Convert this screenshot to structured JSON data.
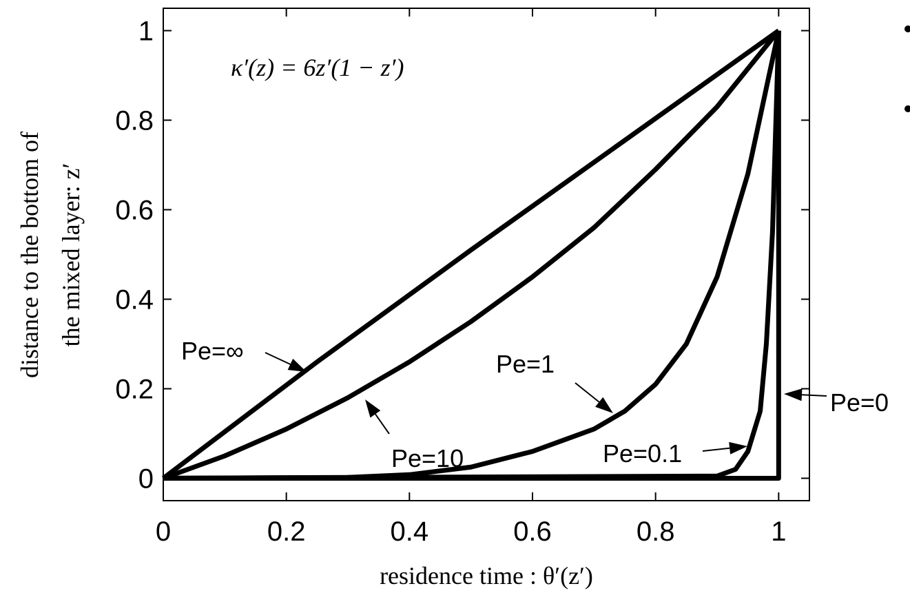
{
  "chart_data": {
    "type": "line",
    "equation": "κ′(z) = 6z′(1 − z′)",
    "x_label": "residence time :  θ′(z′)",
    "y_label": [
      "distance to the bottom of",
      "the mixed layer: z′"
    ],
    "xlim": [
      0,
      1.05
    ],
    "ylim": [
      -0.05,
      1.05
    ],
    "xticks": [
      0,
      0.2,
      0.4,
      0.6,
      0.8,
      1
    ],
    "yticks": [
      0,
      0.2,
      0.4,
      0.6,
      0.8,
      1
    ],
    "color": "#000000",
    "series": [
      {
        "name": "Pe=∞",
        "x": [
          0,
          0.25,
          0.5,
          0.75,
          1
        ],
        "values": [
          0,
          0.26,
          0.51,
          0.755,
          1
        ]
      },
      {
        "name": "Pe=10",
        "x": [
          0,
          0.1,
          0.2,
          0.3,
          0.4,
          0.5,
          0.6,
          0.7,
          0.8,
          0.9,
          1
        ],
        "values": [
          0,
          0.05,
          0.11,
          0.18,
          0.26,
          0.35,
          0.45,
          0.56,
          0.69,
          0.83,
          1
        ]
      },
      {
        "name": "Pe=1",
        "x": [
          0,
          0.3,
          0.4,
          0.5,
          0.6,
          0.7,
          0.75,
          0.8,
          0.85,
          0.9,
          0.95,
          1
        ],
        "values": [
          0,
          0.002,
          0.008,
          0.025,
          0.06,
          0.11,
          0.15,
          0.21,
          0.3,
          0.45,
          0.68,
          1
        ]
      },
      {
        "name": "Pe=0.1",
        "x": [
          0,
          0.9,
          0.93,
          0.95,
          0.97,
          0.98,
          0.99,
          1
        ],
        "values": [
          0,
          0.005,
          0.02,
          0.06,
          0.15,
          0.3,
          0.55,
          1
        ]
      },
      {
        "name": "Pe=0",
        "x": [
          0,
          1,
          1
        ],
        "values": [
          0,
          0,
          1
        ]
      }
    ]
  }
}
